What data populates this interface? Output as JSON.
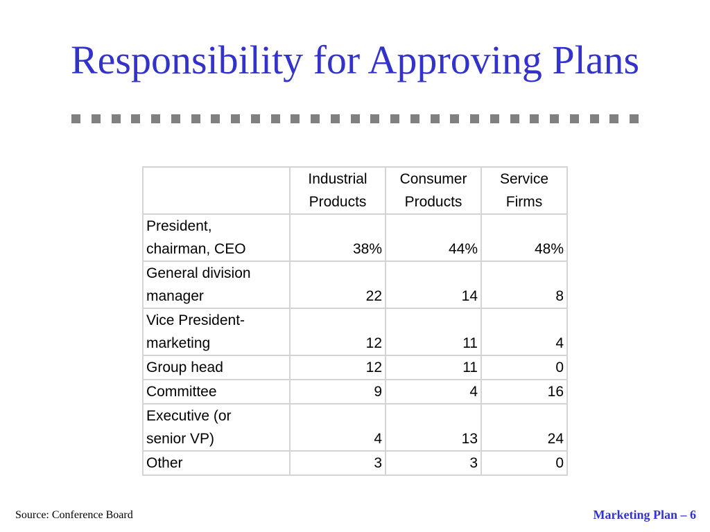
{
  "slide": {
    "title": "Responsibility for Approving Plans",
    "source": "Source: Conference Board",
    "footer": "Marketing Plan – 6",
    "title_color": "#3333cc",
    "divider_color": "#808080"
  },
  "table": {
    "headers": [
      [
        "",
        ""
      ],
      [
        "Industrial",
        "Products"
      ],
      [
        "Consumer",
        "Products"
      ],
      [
        "Service",
        "Firms"
      ]
    ],
    "rows": [
      {
        "label": [
          "President,",
          "chairman, CEO"
        ],
        "values": [
          "38%",
          "44%",
          "48%"
        ]
      },
      {
        "label": [
          "General division",
          "manager"
        ],
        "values": [
          "22",
          "14",
          "8"
        ]
      },
      {
        "label": [
          "Vice President-",
          "marketing"
        ],
        "values": [
          "12",
          "11",
          "4"
        ]
      },
      {
        "label": [
          "Group head"
        ],
        "values": [
          "12",
          "11",
          "0"
        ]
      },
      {
        "label": [
          "Committee"
        ],
        "values": [
          "9",
          "4",
          "16"
        ]
      },
      {
        "label": [
          "Executive (or",
          "senior VP)"
        ],
        "values": [
          "4",
          "13",
          "24"
        ]
      },
      {
        "label": [
          "Other"
        ],
        "values": [
          "3",
          "3",
          "0"
        ]
      }
    ]
  }
}
